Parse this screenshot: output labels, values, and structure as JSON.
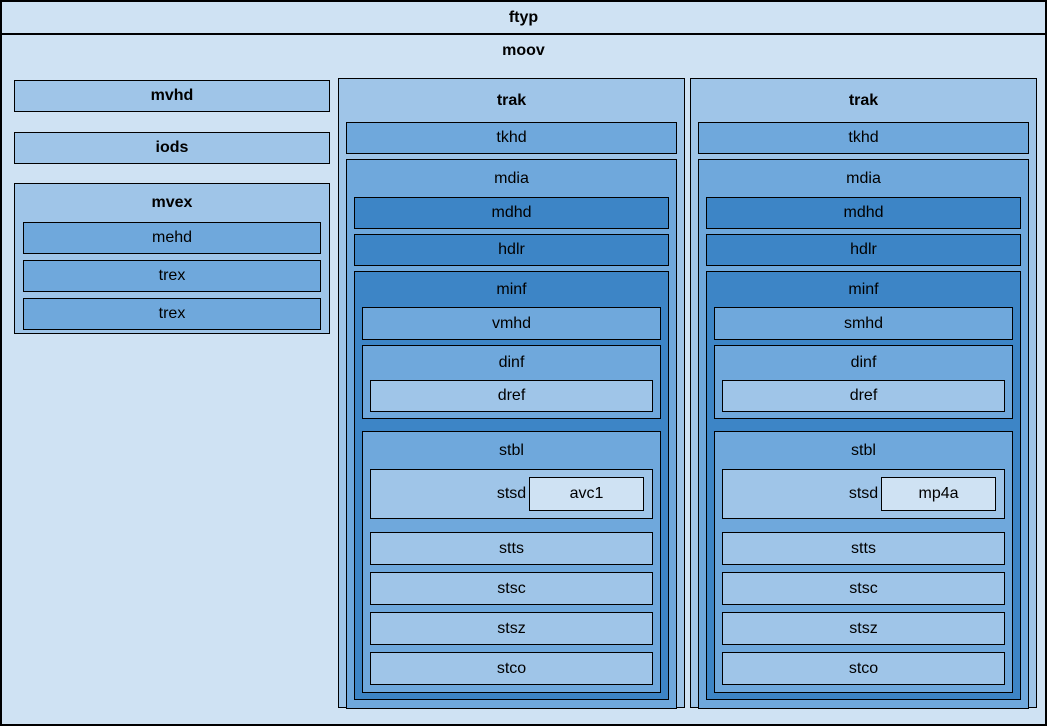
{
  "palette": {
    "level0_bg": "#cfe2f3",
    "level1_bg": "#9fc5e8",
    "level2_bg": "#6fa8dc",
    "level3_bg": "#3d85c6",
    "border": "#000000",
    "text": "#000000"
  },
  "ftyp": {
    "label": "ftyp"
  },
  "moov": {
    "label": "moov",
    "mvhd": {
      "label": "mvhd"
    },
    "iods": {
      "label": "iods"
    },
    "mvex": {
      "label": "mvex",
      "mehd": {
        "label": "mehd"
      },
      "trex_1": {
        "label": "trex"
      },
      "trex_2": {
        "label": "trex"
      }
    },
    "trak_video": {
      "label": "trak",
      "tkhd": {
        "label": "tkhd"
      },
      "mdia": {
        "label": "mdia",
        "mdhd": {
          "label": "mdhd"
        },
        "hdlr": {
          "label": "hdlr"
        },
        "minf": {
          "label": "minf",
          "vmhd": {
            "label": "vmhd"
          },
          "dinf": {
            "label": "dinf",
            "dref": {
              "label": "dref"
            }
          },
          "stbl": {
            "label": "stbl",
            "stsd": {
              "label": "stsd",
              "codec": {
                "label": "avc1"
              }
            },
            "stts": {
              "label": "stts"
            },
            "stsc": {
              "label": "stsc"
            },
            "stsz": {
              "label": "stsz"
            },
            "stco": {
              "label": "stco"
            }
          }
        }
      }
    },
    "trak_audio": {
      "label": "trak",
      "tkhd": {
        "label": "tkhd"
      },
      "mdia": {
        "label": "mdia",
        "mdhd": {
          "label": "mdhd"
        },
        "hdlr": {
          "label": "hdlr"
        },
        "minf": {
          "label": "minf",
          "smhd": {
            "label": "smhd"
          },
          "dinf": {
            "label": "dinf",
            "dref": {
              "label": "dref"
            }
          },
          "stbl": {
            "label": "stbl",
            "stsd": {
              "label": "stsd",
              "codec": {
                "label": "mp4a"
              }
            },
            "stts": {
              "label": "stts"
            },
            "stsc": {
              "label": "stsc"
            },
            "stsz": {
              "label": "stsz"
            },
            "stco": {
              "label": "stco"
            }
          }
        }
      }
    }
  }
}
